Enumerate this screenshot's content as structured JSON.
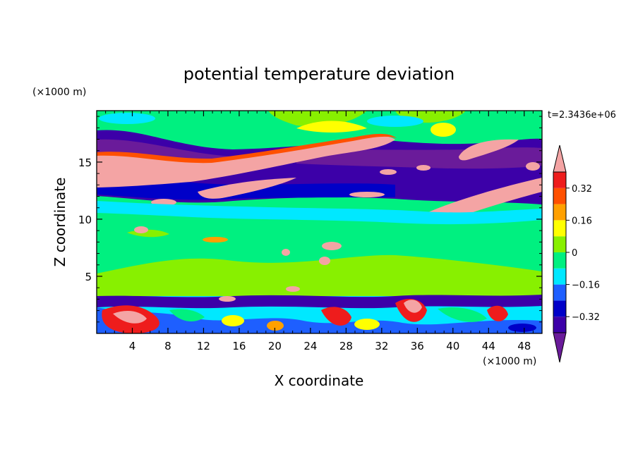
{
  "chart_data": {
    "type": "heatmap",
    "title": "potential temperature deviation",
    "xlabel": "X coordinate",
    "ylabel": "Z coordinate",
    "x_unit_label": "(×1000 m)",
    "y_unit_label": "(×1000 m)",
    "time_label": "t=2.3436e+06",
    "xlim": [
      0,
      50
    ],
    "ylim": [
      0,
      19.5
    ],
    "x_ticks": [
      4,
      8,
      12,
      16,
      20,
      24,
      28,
      32,
      36,
      40,
      44,
      48
    ],
    "y_ticks": [
      5,
      10,
      15
    ],
    "x_tick_labels": [
      "4",
      "8",
      "12",
      "16",
      "20",
      "24",
      "28",
      "32",
      "36",
      "40",
      "44",
      "48"
    ],
    "y_tick_labels": [
      "5",
      "10",
      "15"
    ],
    "colorbar": {
      "levels": [
        -0.4,
        -0.32,
        -0.24,
        -0.16,
        -0.08,
        0,
        0.08,
        0.16,
        0.24,
        0.32,
        0.4
      ],
      "labeled_levels": [
        0.32,
        0.16,
        0,
        -0.16,
        -0.32
      ],
      "labels": [
        "0.32",
        "0.16",
        "0",
        "−0.16",
        "−0.32"
      ],
      "colors": [
        "#6a1b9a",
        "#3c00a8",
        "#0000c8",
        "#1e5fff",
        "#00e8ff",
        "#00f080",
        "#88f000",
        "#ffff00",
        "#ffa000",
        "#ff5000",
        "#ee1c1c",
        "#f4a4a4"
      ],
      "extend": "both"
    },
    "field_bands": [
      {
        "z_range": [
          0,
          3.5
        ],
        "dominant": "mixed -0.4 to 0.4 (convective boundary layer)"
      },
      {
        "z_range": [
          3.5,
          11.5
        ],
        "dominant": "0 to 0.08"
      },
      {
        "z_range": [
          11.5,
          13
        ],
        "dominant": "-0.16 to -0.08"
      },
      {
        "z_range": [
          13,
          17.5
        ],
        "dominant": "below -0.32 with tilted bands above 0.4"
      },
      {
        "z_range": [
          17.5,
          19.5
        ],
        "dominant": "0 to 0.16"
      }
    ]
  }
}
